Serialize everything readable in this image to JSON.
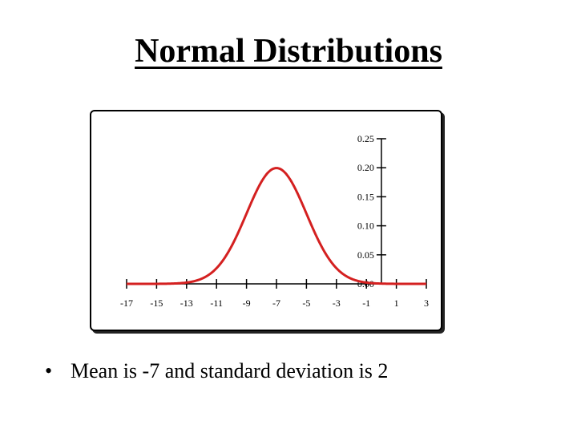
{
  "slide": {
    "title": "Normal Distributions",
    "bullet": "Mean is -7 and standard deviation is 2"
  },
  "colors": {
    "curve": "#d42020",
    "axis": "#000000"
  },
  "chart_data": {
    "type": "line",
    "title": "",
    "xlabel": "",
    "ylabel": "",
    "distribution": "normal",
    "mean": -7,
    "sd": 2,
    "xlim": [
      -17,
      3
    ],
    "ylim": [
      0,
      0.25
    ],
    "x_ticks": [
      -17,
      -15,
      -13,
      -11,
      -9,
      -7,
      -5,
      -3,
      -1,
      1,
      3
    ],
    "x_tick_labels": [
      "-17",
      "-15",
      "-13",
      "-11",
      "-9",
      "-7",
      "-5",
      "-3",
      "-1",
      "1",
      "3"
    ],
    "y_ticks": [
      0,
      0.05,
      0.1,
      0.15,
      0.2,
      0.25
    ],
    "y_tick_labels": [
      "0.00",
      "0.05",
      "0.10",
      "0.15",
      "0.20",
      "0.25"
    ],
    "y_axis_at_x": 0,
    "grid": false,
    "legend": "none"
  }
}
